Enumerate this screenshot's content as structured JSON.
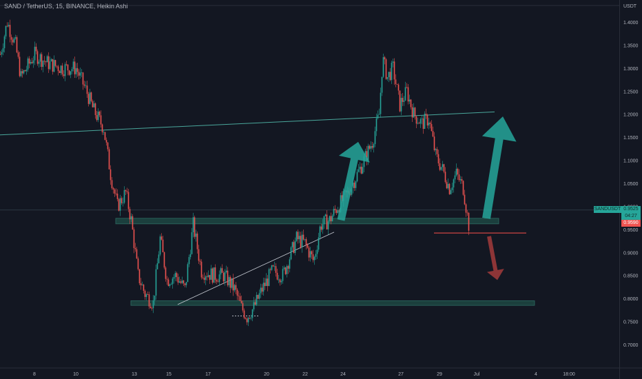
{
  "header": {
    "symbol_line": "SAND / TetherUS, 15, BINANCE, Heikin Ashi",
    "currency": "USDT"
  },
  "price_tags": {
    "symbol": "SANDUSDT",
    "last_price": "0.9525",
    "countdown": "04:27",
    "low_price": "0.9590"
  },
  "colors": {
    "background": "#131722",
    "up": "#26a69a",
    "down": "#ef5350",
    "zone": "#1f4e47",
    "arrow_up": "#26a69a",
    "arrow_down": "#a33b3b"
  },
  "chart_data": {
    "type": "candlestick",
    "ylim": [
      0.67,
      1.43
    ],
    "y_ticks": [
      "1.4000",
      "1.3500",
      "1.3000",
      "1.2500",
      "1.2000",
      "1.1500",
      "1.1000",
      "1.0500",
      "1.0000",
      "0.9500",
      "0.9000",
      "0.8500",
      "0.8000",
      "0.7500",
      "0.7000"
    ],
    "x_ticks": [
      "8",
      "10",
      "13",
      "15",
      "17",
      "20",
      "22",
      "24",
      "27",
      "29",
      "Jul",
      "4",
      "18:00"
    ],
    "price_path": [
      [
        0,
        1.33
      ],
      [
        10,
        1.4
      ],
      [
        22,
        1.35
      ],
      [
        30,
        1.28
      ],
      [
        50,
        1.33
      ],
      [
        70,
        1.31
      ],
      [
        90,
        1.3
      ],
      [
        110,
        1.3
      ],
      [
        125,
        1.25
      ],
      [
        135,
        1.21
      ],
      [
        150,
        1.17
      ],
      [
        160,
        1.07
      ],
      [
        170,
        1.0
      ],
      [
        182,
        1.03
      ],
      [
        190,
        0.97
      ],
      [
        200,
        0.85
      ],
      [
        210,
        0.81
      ],
      [
        222,
        0.79
      ],
      [
        232,
        0.93
      ],
      [
        242,
        0.84
      ],
      [
        255,
        0.85
      ],
      [
        268,
        0.82
      ],
      [
        280,
        0.96
      ],
      [
        292,
        0.86
      ],
      [
        310,
        0.85
      ],
      [
        325,
        0.85
      ],
      [
        340,
        0.82
      ],
      [
        350,
        0.78
      ],
      [
        358,
        0.76
      ],
      [
        368,
        0.78
      ],
      [
        380,
        0.82
      ],
      [
        395,
        0.86
      ],
      [
        410,
        0.85
      ],
      [
        420,
        0.89
      ],
      [
        430,
        0.93
      ],
      [
        442,
        0.92
      ],
      [
        455,
        0.88
      ],
      [
        465,
        0.96
      ],
      [
        478,
        0.97
      ],
      [
        490,
        1.0
      ],
      [
        505,
        1.03
      ],
      [
        515,
        1.06
      ],
      [
        528,
        1.1
      ],
      [
        540,
        1.14
      ],
      [
        550,
        1.2
      ],
      [
        555,
        1.32
      ],
      [
        562,
        1.28
      ],
      [
        570,
        1.3
      ],
      [
        580,
        1.22
      ],
      [
        590,
        1.25
      ],
      [
        600,
        1.2
      ],
      [
        612,
        1.18
      ],
      [
        622,
        1.19
      ],
      [
        632,
        1.11
      ],
      [
        642,
        1.08
      ],
      [
        652,
        1.04
      ],
      [
        662,
        1.07
      ],
      [
        672,
        1.04
      ],
      [
        680,
        0.96
      ]
    ],
    "annotations": {
      "trendline_upper": {
        "from": [
          0,
          1.155
        ],
        "to": [
          718,
          1.205
        ]
      },
      "trendline_lower": {
        "from": [
          258,
          0.787
        ],
        "to": [
          485,
          0.944
        ]
      },
      "zone_support": {
        "x": [
          168,
          724
        ],
        "y": [
          0.962,
          0.974
        ]
      },
      "zone_bottom": {
        "x": [
          190,
          776
        ],
        "y": [
          0.785,
          0.795
        ]
      },
      "resistance_red": {
        "x": [
          630,
          764
        ],
        "y": 0.942
      },
      "dashed_low": {
        "x": [
          337,
          376
        ],
        "y": 0.762
      },
      "arrow_up_1": {
        "from": [
          495,
          0.97
        ],
        "to": [
          520,
          1.14
        ]
      },
      "arrow_up_2": {
        "from": [
          706,
          0.974
        ],
        "to": [
          730,
          1.195
        ]
      },
      "arrow_down": {
        "from": [
          710,
          0.935
        ],
        "to": [
          722,
          0.84
        ]
      }
    }
  }
}
